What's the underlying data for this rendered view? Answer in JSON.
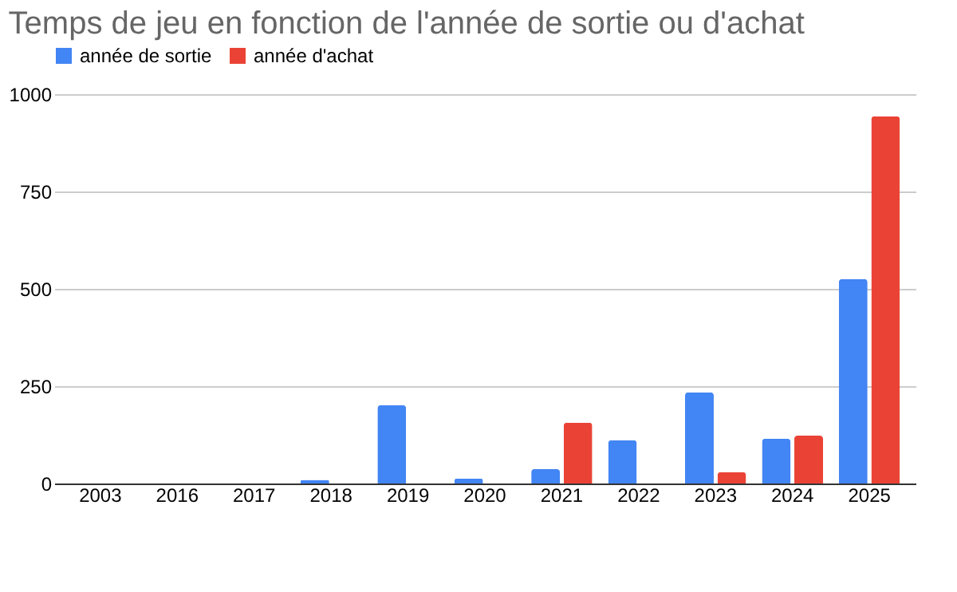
{
  "chart_data": {
    "type": "bar",
    "title": "Temps de jeu en fonction de l'année de sortie ou d'achat",
    "categories": [
      "2003",
      "2016",
      "2017",
      "2018",
      "2019",
      "2020",
      "2021",
      "2022",
      "2023",
      "2024",
      "2025"
    ],
    "series": [
      {
        "name": "année de sortie",
        "color": "#4285f4",
        "values": [
          0,
          0,
          0,
          9,
          201,
          13,
          37,
          111,
          234,
          115,
          525
        ]
      },
      {
        "name": "année d'achat",
        "color": "#ea4335",
        "values": [
          0,
          0,
          0,
          0,
          0,
          0,
          156,
          0,
          29,
          123,
          943
        ]
      }
    ],
    "ylim": [
      0,
      1000
    ],
    "yticks": [
      0,
      250,
      500,
      750,
      1000
    ],
    "grid": "y",
    "legend": "top"
  }
}
